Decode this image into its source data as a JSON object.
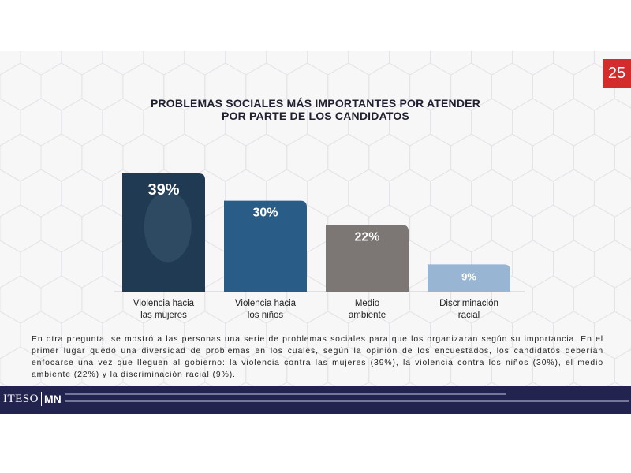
{
  "page_number": "25",
  "title": {
    "line1": "PROBLEMAS SOCIALES MÁS IMPORTANTES POR ATENDER",
    "line2": "POR PARTE DE LOS CANDIDATOS"
  },
  "chart_data": {
    "type": "bar",
    "categories": [
      [
        "Violencia hacia",
        "las mujeres"
      ],
      [
        "Violencia hacia",
        "los niños"
      ],
      [
        "Medio",
        "ambiente"
      ],
      [
        "Discriminación",
        "racial"
      ]
    ],
    "values": [
      39,
      30,
      22,
      9
    ],
    "labels": [
      "39%",
      "30%",
      "22%",
      "9%"
    ],
    "colors": [
      "#1f3a52",
      "#2a5c88",
      "#7c7674",
      "#98b6d3"
    ],
    "ylim": [
      0,
      39
    ],
    "unit": "%"
  },
  "body": "En otra pregunta, se mostró a las personas una serie de problemas sociales para que los organizaran según su importancia. En el primer lugar quedó una diversidad de problemas en los cuales, según la opinión de los encuestados, los candidatos deberían enfocarse una vez que lleguen al gobierno: la violencia contra las mujeres (39%), la violencia contra los niños (30%), el medio ambiente (22%) y la discriminación racial (9%).",
  "footer": {
    "logo_left": "ITESO",
    "logo_right": "MN"
  }
}
